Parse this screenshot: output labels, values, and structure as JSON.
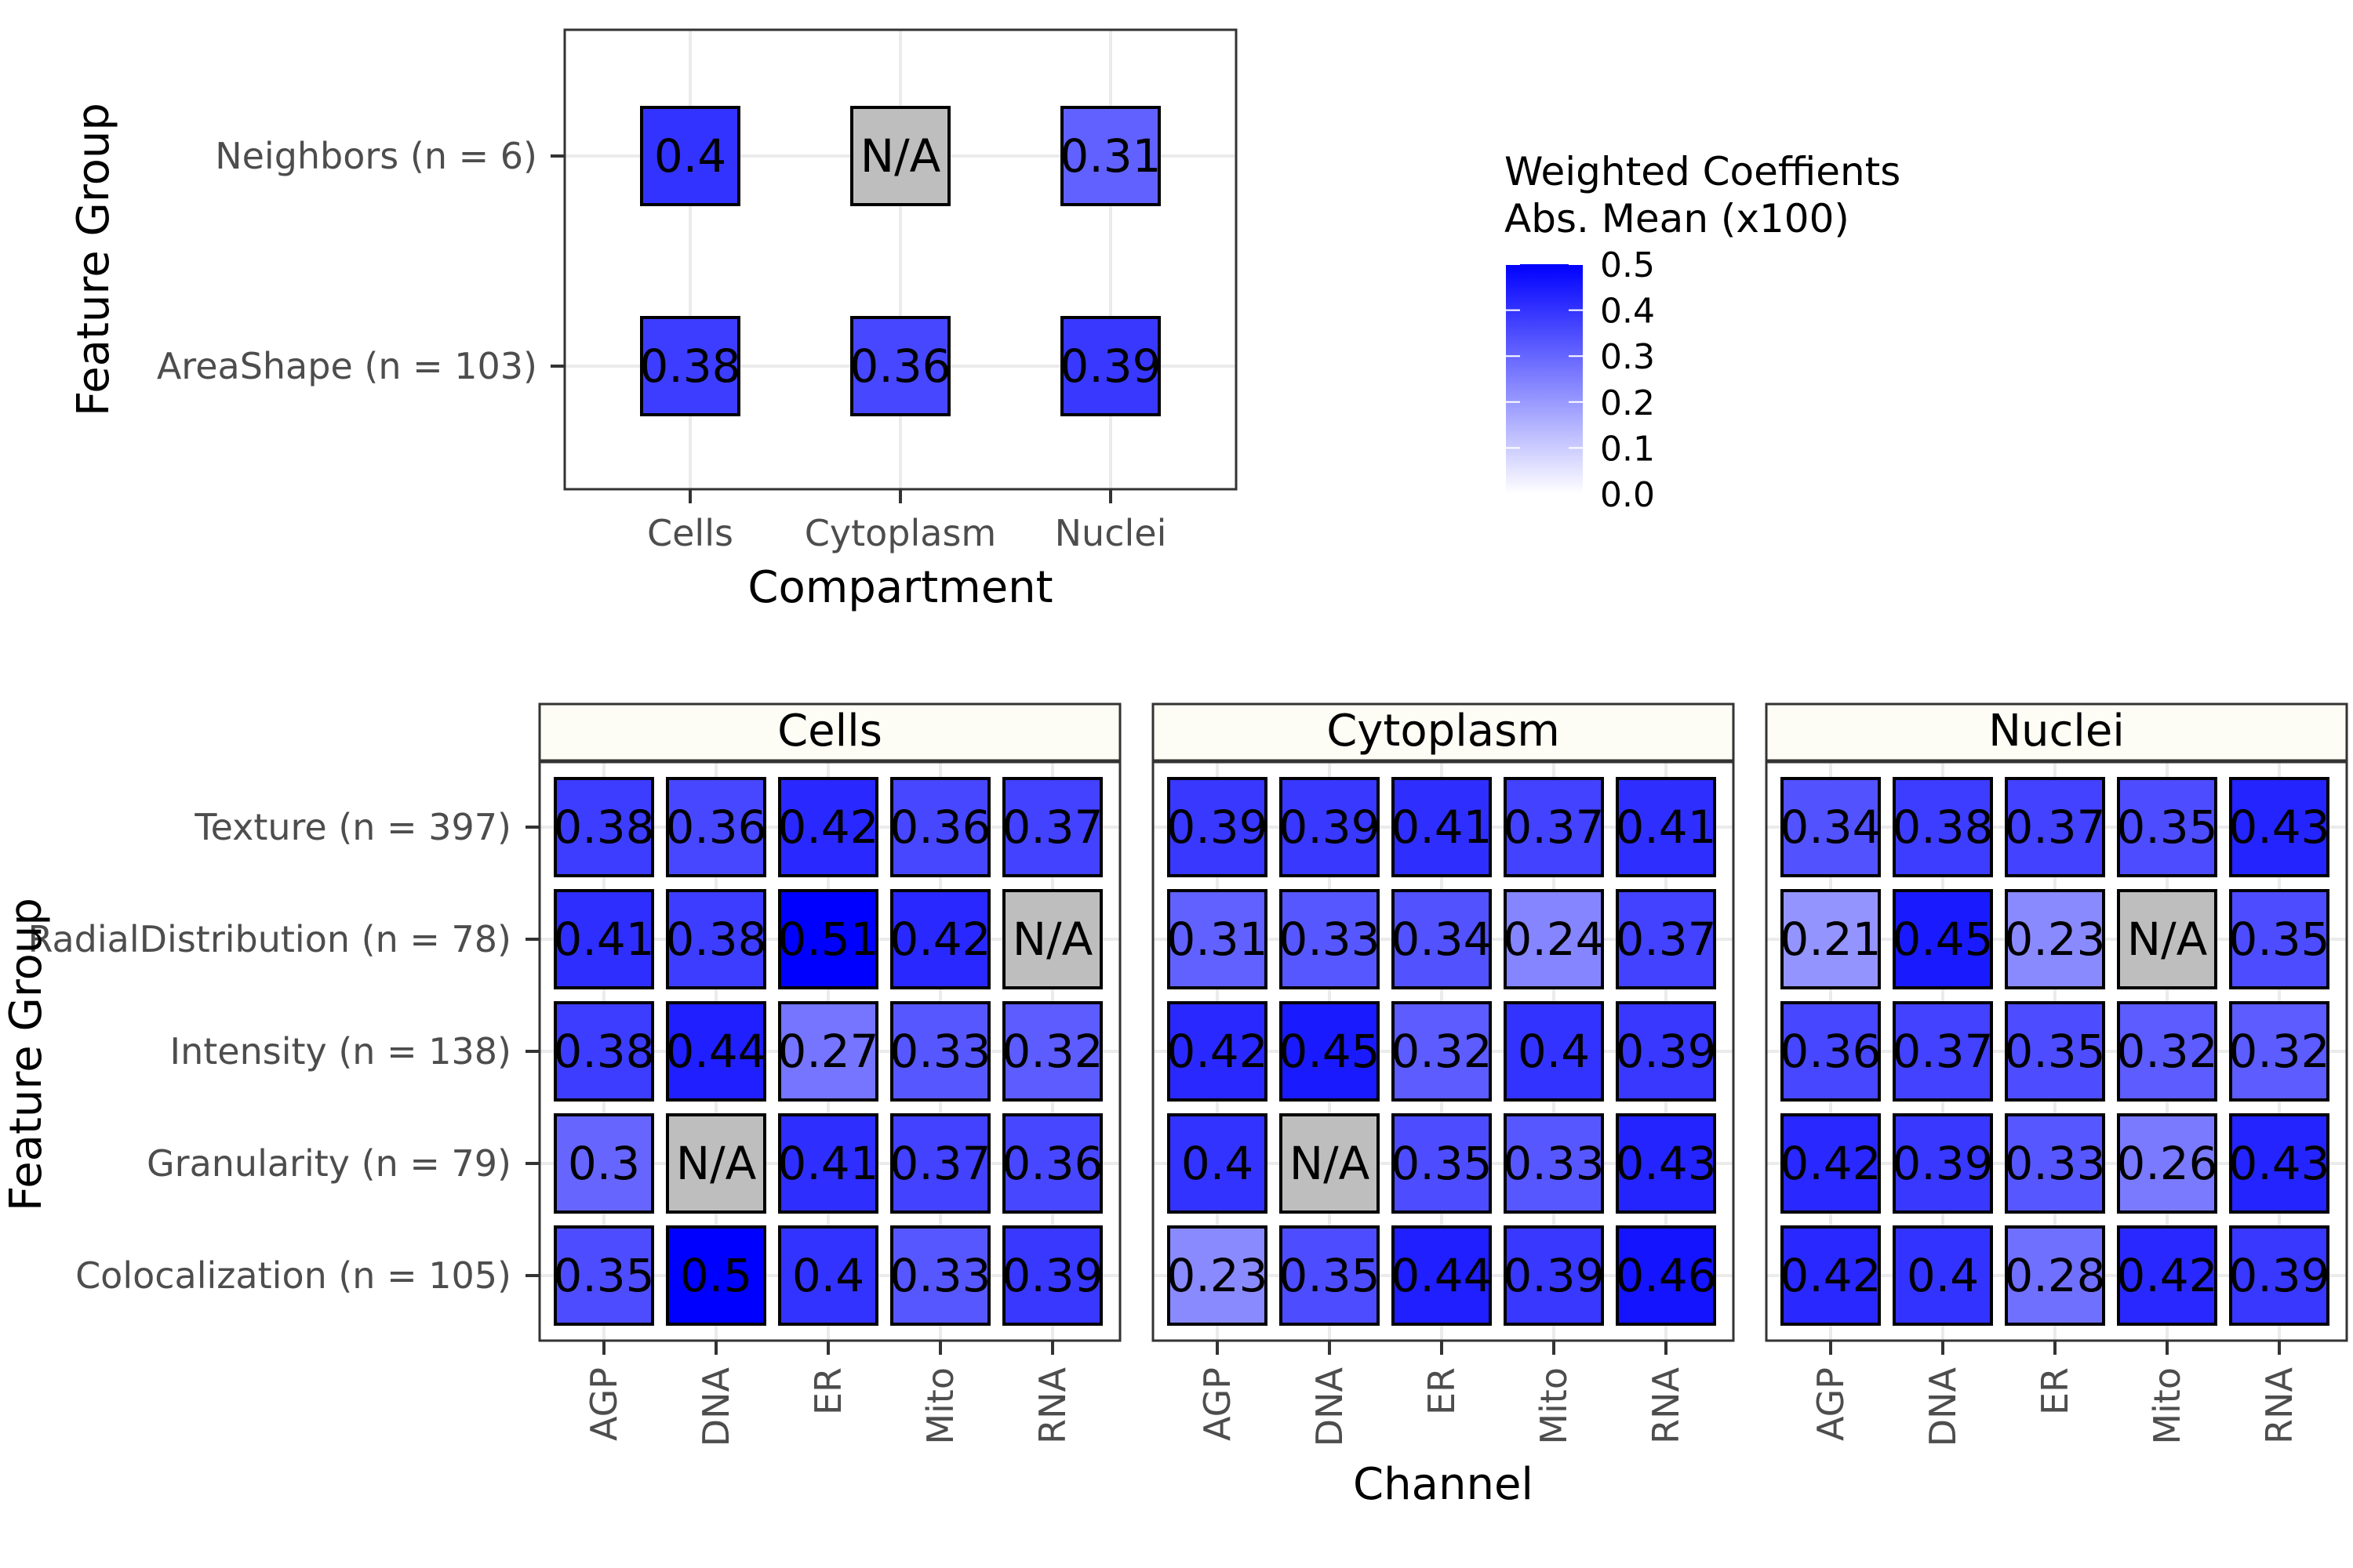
{
  "chart_data": [
    {
      "type": "heatmap",
      "xlabel": "Compartment",
      "ylabel": "Feature Group",
      "categories": [
        "Cells",
        "Cytoplasm",
        "Nuclei"
      ],
      "rows": [
        "Neighbors (n = 6)",
        "AreaShape (n = 103)"
      ],
      "values": [
        [
          0.4,
          null,
          0.31
        ],
        [
          0.38,
          0.36,
          0.39
        ]
      ],
      "labels": [
        [
          "0.4",
          "N/A",
          "0.31"
        ],
        [
          "0.38",
          "0.36",
          "0.39"
        ]
      ],
      "grid": true
    },
    {
      "type": "heatmap",
      "xlabel": "Channel",
      "ylabel": "Feature Group",
      "facets": [
        "Cells",
        "Cytoplasm",
        "Nuclei"
      ],
      "categories": [
        "AGP",
        "DNA",
        "ER",
        "Mito",
        "RNA"
      ],
      "rows": [
        "Texture (n = 397)",
        "RadialDistribution (n = 78)",
        "Intensity (n = 138)",
        "Granularity (n = 79)",
        "Colocalization (n = 105)"
      ],
      "panels": [
        {
          "name": "Cells",
          "values": [
            [
              0.38,
              0.36,
              0.42,
              0.36,
              0.37
            ],
            [
              0.41,
              0.38,
              0.51,
              0.42,
              null
            ],
            [
              0.38,
              0.44,
              0.27,
              0.33,
              0.32
            ],
            [
              0.3,
              null,
              0.41,
              0.37,
              0.36
            ],
            [
              0.35,
              0.5,
              0.4,
              0.33,
              0.39
            ]
          ],
          "labels": [
            [
              "0.38",
              "0.36",
              "0.42",
              "0.36",
              "0.37"
            ],
            [
              "0.41",
              "0.38",
              "0.51",
              "0.42",
              "N/A"
            ],
            [
              "0.38",
              "0.44",
              "0.27",
              "0.33",
              "0.32"
            ],
            [
              "0.3",
              "N/A",
              "0.41",
              "0.37",
              "0.36"
            ],
            [
              "0.35",
              "0.5",
              "0.4",
              "0.33",
              "0.39"
            ]
          ]
        },
        {
          "name": "Cytoplasm",
          "values": [
            [
              0.39,
              0.39,
              0.41,
              0.37,
              0.41
            ],
            [
              0.31,
              0.33,
              0.34,
              0.24,
              0.37
            ],
            [
              0.42,
              0.45,
              0.32,
              0.4,
              0.39
            ],
            [
              0.4,
              null,
              0.35,
              0.33,
              0.43
            ],
            [
              0.23,
              0.35,
              0.44,
              0.39,
              0.46
            ]
          ],
          "labels": [
            [
              "0.39",
              "0.39",
              "0.41",
              "0.37",
              "0.41"
            ],
            [
              "0.31",
              "0.33",
              "0.34",
              "0.24",
              "0.37"
            ],
            [
              "0.42",
              "0.45",
              "0.32",
              "0.4",
              "0.39"
            ],
            [
              "0.4",
              "N/A",
              "0.35",
              "0.33",
              "0.43"
            ],
            [
              "0.23",
              "0.35",
              "0.44",
              "0.39",
              "0.46"
            ]
          ]
        },
        {
          "name": "Nuclei",
          "values": [
            [
              0.34,
              0.38,
              0.37,
              0.35,
              0.43
            ],
            [
              0.21,
              0.45,
              0.23,
              null,
              0.35
            ],
            [
              0.36,
              0.37,
              0.35,
              0.32,
              0.32
            ],
            [
              0.42,
              0.39,
              0.33,
              0.26,
              0.43
            ],
            [
              0.42,
              0.4,
              0.28,
              0.42,
              0.39
            ]
          ],
          "labels": [
            [
              "0.34",
              "0.38",
              "0.37",
              "0.35",
              "0.43"
            ],
            [
              "0.21",
              "0.45",
              "0.23",
              "N/A",
              "0.35"
            ],
            [
              "0.36",
              "0.37",
              "0.35",
              "0.32",
              "0.32"
            ],
            [
              "0.42",
              "0.39",
              "0.33",
              "0.26",
              "0.43"
            ],
            [
              "0.42",
              "0.4",
              "0.28",
              "0.42",
              "0.39"
            ]
          ]
        }
      ],
      "grid": true
    }
  ],
  "legend": {
    "title_line1": "Weighted Coeffients",
    "title_line2": "Abs. Mean (x100)",
    "ticks": [
      "0.5",
      "0.4",
      "0.3",
      "0.2",
      "0.1",
      "0.0"
    ],
    "range": [
      0,
      0.5
    ],
    "low_color": "#ffffff",
    "high_color": "#0000ff",
    "placement": "right"
  },
  "colors": {
    "na_fill": "#bebebe",
    "strip_fill": "#fdfdf5",
    "grid": "#ebebeb"
  }
}
